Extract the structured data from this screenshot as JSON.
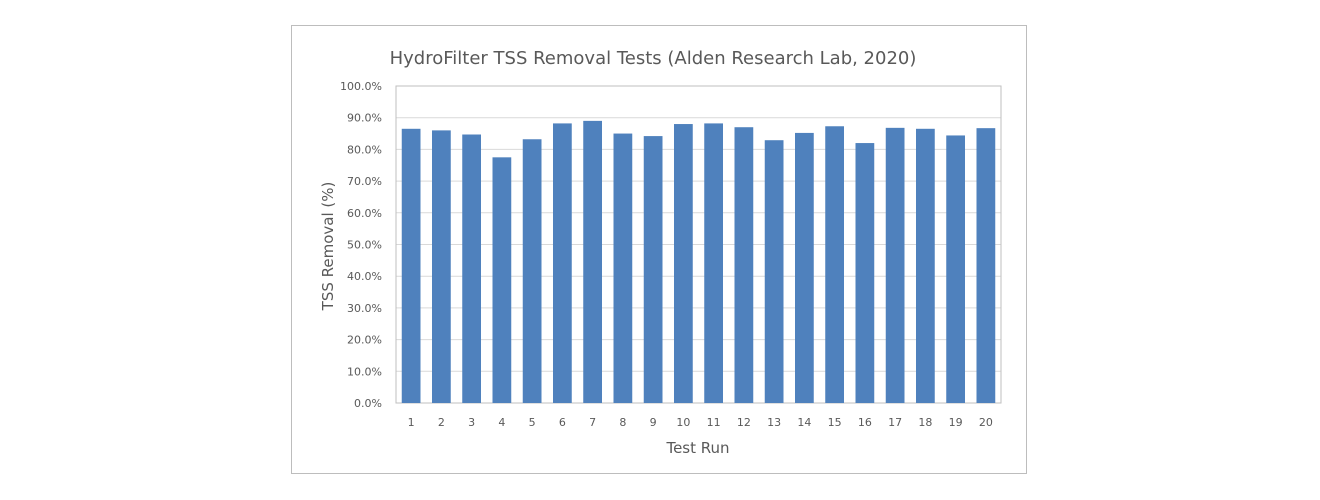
{
  "chart_data": {
    "type": "bar",
    "title": "HydroFilter TSS Removal Tests (Alden Research Lab, 2020)",
    "xlabel": "Test Run",
    "ylabel": "TSS Removal (%)",
    "categories": [
      "1",
      "2",
      "3",
      "4",
      "5",
      "6",
      "7",
      "8",
      "9",
      "10",
      "11",
      "12",
      "13",
      "14",
      "15",
      "16",
      "17",
      "18",
      "19",
      "20"
    ],
    "values": [
      86.5,
      86.0,
      84.7,
      77.5,
      83.2,
      88.2,
      89.0,
      85.0,
      84.2,
      88.0,
      88.2,
      87.0,
      82.9,
      85.2,
      87.3,
      82.0,
      86.8,
      86.5,
      84.4,
      86.7
    ],
    "ylim": [
      0,
      100
    ],
    "yticks": [
      "0.0%",
      "10.0%",
      "20.0%",
      "30.0%",
      "40.0%",
      "50.0%",
      "60.0%",
      "70.0%",
      "80.0%",
      "90.0%",
      "100.0%"
    ],
    "grid": true,
    "bar_color": "#4f81bd",
    "grid_color": "#d9d9d9"
  }
}
